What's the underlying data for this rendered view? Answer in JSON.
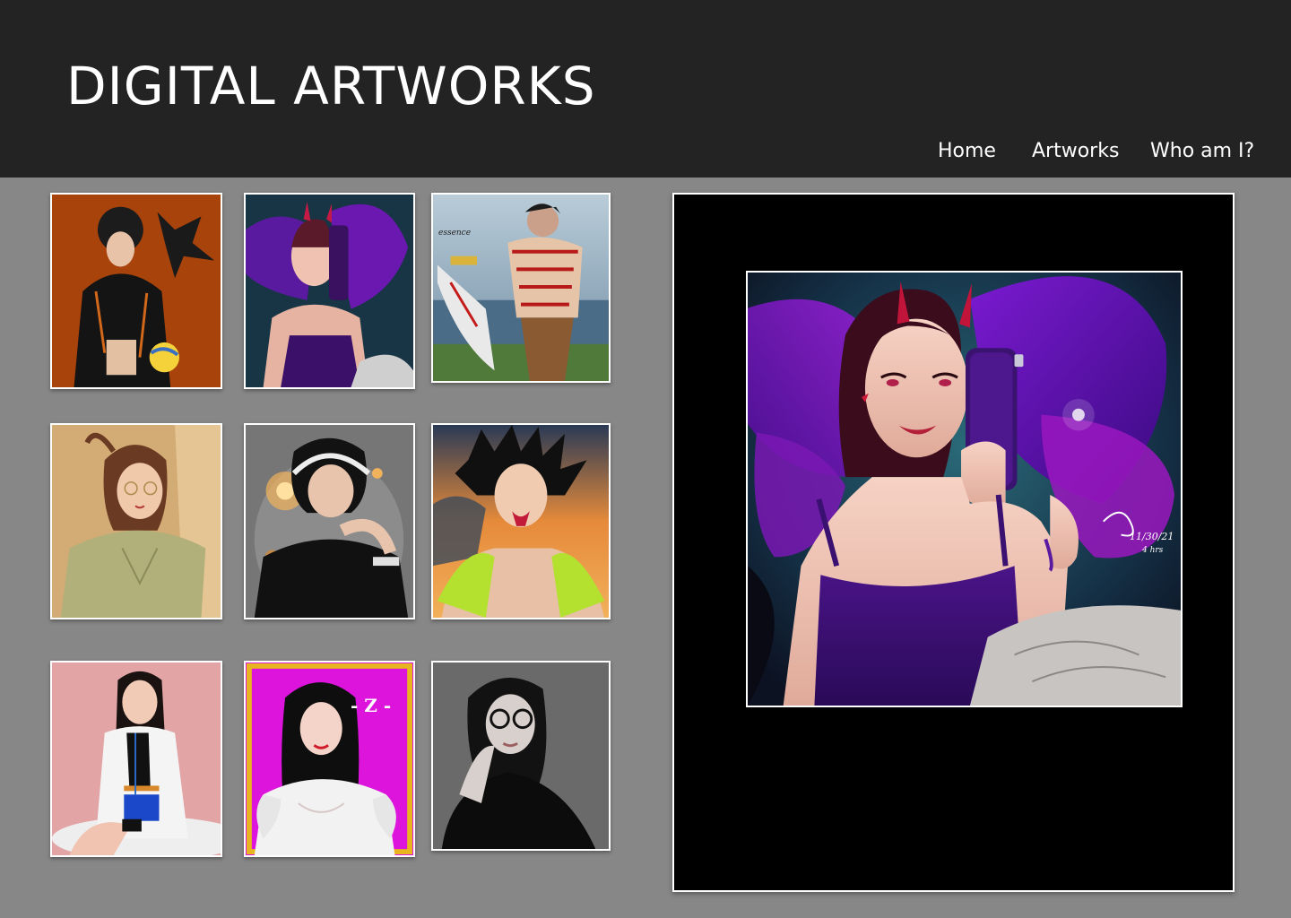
{
  "header": {
    "title": "DIGITAL ARTWORKS"
  },
  "nav": {
    "items": [
      {
        "label": "Home"
      },
      {
        "label": "Artworks"
      },
      {
        "label": "Who am I?"
      }
    ]
  },
  "gallery": {
    "thumbnails": [
      {
        "subject": "man-with-crow-and-volleyball",
        "bg": "#a8430c"
      },
      {
        "subject": "horned-fairy-selfie",
        "bg": "#1f2a48"
      },
      {
        "subject": "tattooed-warrior-with-sword",
        "bg": "#8aa7bd",
        "caption": "essence"
      },
      {
        "subject": "woman-with-glasses-ponytail",
        "bg": "#d3ab74"
      },
      {
        "subject": "man-with-headphones",
        "bg": "#767676"
      },
      {
        "subject": "spiky-hair-fanged-man",
        "bg": "#e5823a"
      },
      {
        "subject": "woman-in-white-coat",
        "bg": "#e3a4a6"
      },
      {
        "subject": "woman-in-white-dress",
        "bg": "#dc14dc",
        "caption": "- Z -"
      },
      {
        "subject": "woman-with-round-glasses",
        "bg": "#6a6a6a"
      }
    ]
  },
  "viewer": {
    "selected": "horned-fairy-selfie",
    "signature_date": "11/30/21",
    "signature_time": "4 hrs"
  },
  "colors": {
    "header_bg": "#232323",
    "page_bg": "#878787",
    "viewer_bg": "#000000",
    "frame": "#ffffff"
  }
}
